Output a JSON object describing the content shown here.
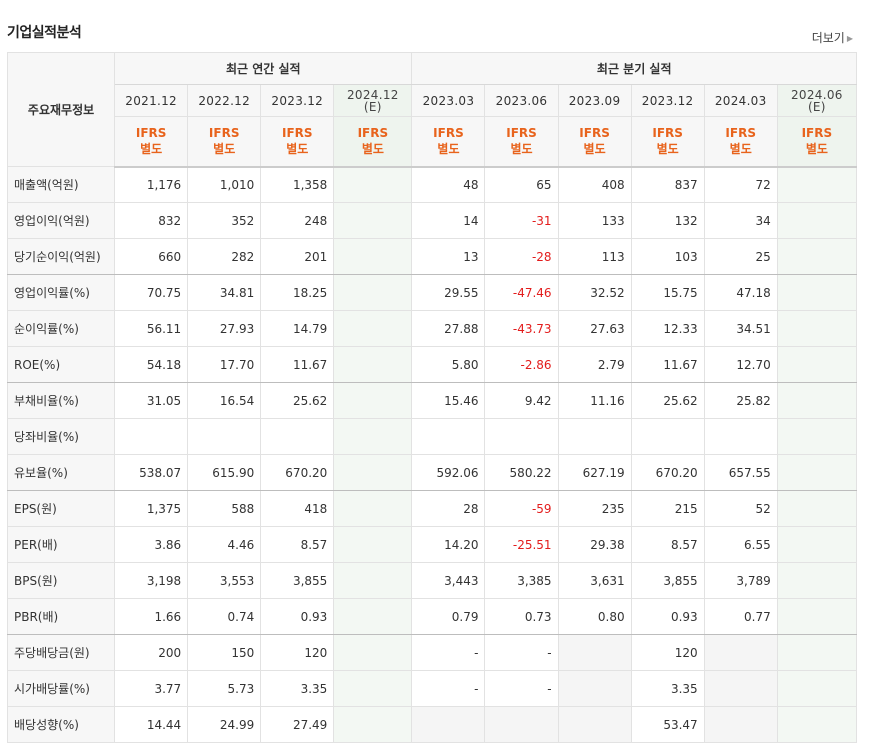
{
  "header": {
    "title": "기업실적분석",
    "more_label": "더보기"
  },
  "table": {
    "row_header_label": "주요재무정보",
    "annual_group_label": "최근 연간 실적",
    "quarter_group_label": "최근 분기 실적",
    "annual_periods": [
      {
        "label": "2021.12",
        "estimate": ""
      },
      {
        "label": "2022.12",
        "estimate": ""
      },
      {
        "label": "2023.12",
        "estimate": ""
      },
      {
        "label": "2024.12",
        "estimate": "(E)"
      }
    ],
    "quarter_periods": [
      {
        "label": "2023.03",
        "estimate": ""
      },
      {
        "label": "2023.06",
        "estimate": ""
      },
      {
        "label": "2023.09",
        "estimate": ""
      },
      {
        "label": "2023.12",
        "estimate": ""
      },
      {
        "label": "2024.03",
        "estimate": ""
      },
      {
        "label": "2024.06",
        "estimate": "(E)"
      }
    ],
    "basis": {
      "line1": "IFRS",
      "line2": "별도"
    },
    "rows": [
      {
        "label": "매출액(억원)",
        "annual": [
          "1,176",
          "1,010",
          "1,358",
          ""
        ],
        "quarter": [
          "48",
          "65",
          "408",
          "837",
          "72",
          ""
        ]
      },
      {
        "label": "영업이익(억원)",
        "annual": [
          "832",
          "352",
          "248",
          ""
        ],
        "quarter": [
          "14",
          "-31",
          "133",
          "132",
          "34",
          ""
        ]
      },
      {
        "label": "당기순이익(억원)",
        "annual": [
          "660",
          "282",
          "201",
          ""
        ],
        "quarter": [
          "13",
          "-28",
          "113",
          "103",
          "25",
          ""
        ],
        "group_end": true
      },
      {
        "label": "영업이익률(%)",
        "annual": [
          "70.75",
          "34.81",
          "18.25",
          ""
        ],
        "quarter": [
          "29.55",
          "-47.46",
          "32.52",
          "15.75",
          "47.18",
          ""
        ]
      },
      {
        "label": "순이익률(%)",
        "annual": [
          "56.11",
          "27.93",
          "14.79",
          ""
        ],
        "quarter": [
          "27.88",
          "-43.73",
          "27.63",
          "12.33",
          "34.51",
          ""
        ]
      },
      {
        "label": "ROE(%)",
        "annual": [
          "54.18",
          "17.70",
          "11.67",
          ""
        ],
        "quarter": [
          "5.80",
          "-2.86",
          "2.79",
          "11.67",
          "12.70",
          ""
        ],
        "group_end": true
      },
      {
        "label": "부채비율(%)",
        "annual": [
          "31.05",
          "16.54",
          "25.62",
          ""
        ],
        "quarter": [
          "15.46",
          "9.42",
          "11.16",
          "25.62",
          "25.82",
          ""
        ]
      },
      {
        "label": "당좌비율(%)",
        "annual": [
          "",
          "",
          "",
          ""
        ],
        "quarter": [
          "",
          "",
          "",
          "",
          "",
          ""
        ]
      },
      {
        "label": "유보율(%)",
        "annual": [
          "538.07",
          "615.90",
          "670.20",
          ""
        ],
        "quarter": [
          "592.06",
          "580.22",
          "627.19",
          "670.20",
          "657.55",
          ""
        ],
        "group_end": true
      },
      {
        "label": "EPS(원)",
        "annual": [
          "1,375",
          "588",
          "418",
          ""
        ],
        "quarter": [
          "28",
          "-59",
          "235",
          "215",
          "52",
          ""
        ]
      },
      {
        "label": "PER(배)",
        "annual": [
          "3.86",
          "4.46",
          "8.57",
          ""
        ],
        "quarter": [
          "14.20",
          "-25.51",
          "29.38",
          "8.57",
          "6.55",
          ""
        ]
      },
      {
        "label": "BPS(원)",
        "annual": [
          "3,198",
          "3,553",
          "3,855",
          ""
        ],
        "quarter": [
          "3,443",
          "3,385",
          "3,631",
          "3,855",
          "3,789",
          ""
        ]
      },
      {
        "label": "PBR(배)",
        "annual": [
          "1.66",
          "0.74",
          "0.93",
          ""
        ],
        "quarter": [
          "0.79",
          "0.73",
          "0.80",
          "0.93",
          "0.77",
          ""
        ],
        "group_end": true
      },
      {
        "label": "주당배당금(원)",
        "annual": [
          "200",
          "150",
          "120",
          ""
        ],
        "quarter": [
          "-",
          "-",
          "",
          "120",
          "",
          ""
        ],
        "gray_quarter": [
          2,
          4
        ]
      },
      {
        "label": "시가배당률(%)",
        "annual": [
          "3.77",
          "5.73",
          "3.35",
          ""
        ],
        "quarter": [
          "-",
          "-",
          "",
          "3.35",
          "",
          ""
        ],
        "gray_quarter": [
          2,
          4
        ]
      },
      {
        "label": "배당성향(%)",
        "annual": [
          "14.44",
          "24.99",
          "27.49",
          ""
        ],
        "quarter": [
          "",
          "",
          "",
          "53.47",
          "",
          ""
        ],
        "gray_quarter": [
          0,
          1,
          2,
          4
        ]
      }
    ]
  },
  "colors": {
    "negative": "#e31c1c",
    "ifrs": "#e8631c",
    "estimate_bg": "#f3f8f3"
  }
}
